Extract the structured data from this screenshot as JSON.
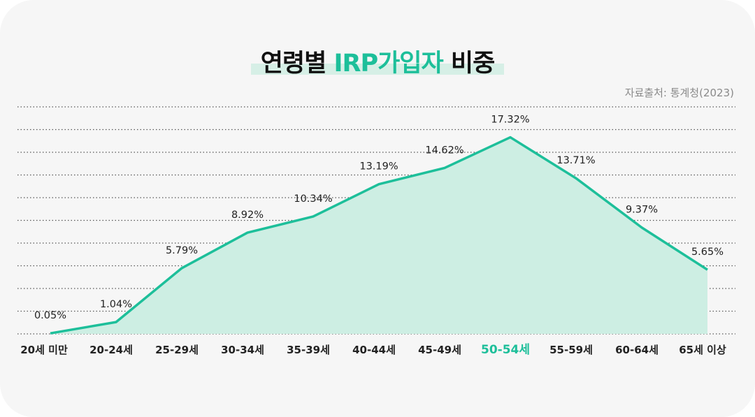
{
  "title": {
    "prefix": "연령별 ",
    "accent": "IRP가입자",
    "suffix": " 비중"
  },
  "source": "자료출처: 통계청(2023)",
  "colors": {
    "line": "#1dbf9a",
    "fill": "#cdeee3",
    "highlight": "#1dbf9a",
    "grid": "#555555"
  },
  "chart_data": {
    "type": "area",
    "title": "연령별 IRP가입자 비중",
    "xlabel": "",
    "ylabel": "",
    "ylim": [
      0,
      20
    ],
    "grid": true,
    "highlight_category": "50-54세",
    "categories": [
      "20세 미만",
      "20-24세",
      "25-29세",
      "30-34세",
      "35-39세",
      "40-44세",
      "45-49세",
      "50-54세",
      "55-59세",
      "60-64세",
      "65세 이상"
    ],
    "values": [
      0.05,
      1.04,
      5.79,
      8.92,
      10.34,
      13.19,
      14.62,
      17.32,
      13.71,
      9.37,
      5.65
    ],
    "labels": [
      "0.05%",
      "1.04%",
      "5.79%",
      "8.92%",
      "10.34%",
      "13.19%",
      "14.62%",
      "17.32%",
      "13.71%",
      "9.37%",
      "5.65%"
    ]
  }
}
